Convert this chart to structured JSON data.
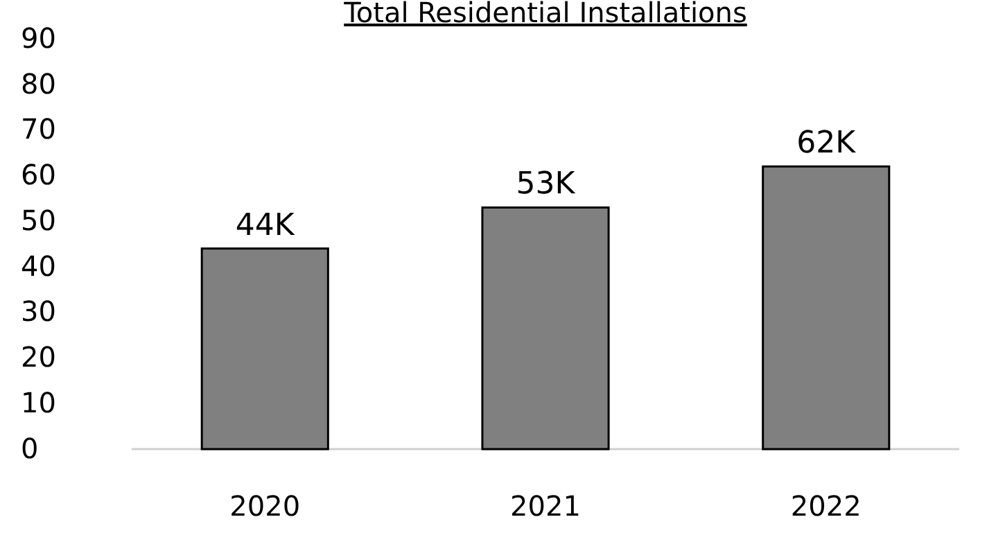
{
  "chart_data": {
    "type": "bar",
    "title": "Total Residential Installations",
    "categories": [
      "2020",
      "2021",
      "2022"
    ],
    "values": [
      44,
      53,
      62
    ],
    "value_labels": [
      "44K",
      "53K",
      "62K"
    ],
    "color": "#808080",
    "ylim": [
      0,
      90
    ],
    "yticks": [
      0,
      10,
      20,
      30,
      40,
      50,
      60,
      70,
      80,
      90
    ],
    "grid": false
  }
}
